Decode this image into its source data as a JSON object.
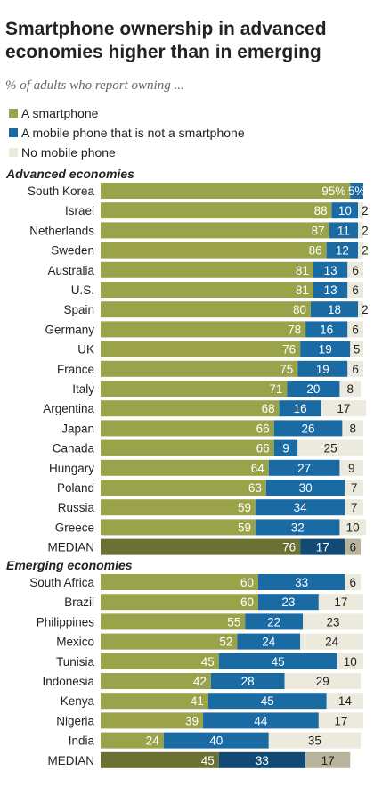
{
  "title": "Smartphone ownership in advanced economies higher than in emerging",
  "subtitle": "% of adults who report owning ...",
  "colors": {
    "smartphone": "#9aa24a",
    "mobile": "#1a6aa3",
    "none": "#ebeadd",
    "median_smartphone": "#6b7034",
    "median_mobile": "#124a73",
    "median_none": "#b8b39b"
  },
  "chart_data": {
    "type": "bar",
    "stacked": true,
    "orientation": "horizontal",
    "legend": {
      "placement": "top-left",
      "entries": [
        "A smartphone",
        "A mobile phone that is not a smartphone",
        "No mobile phone"
      ]
    },
    "groups": [
      {
        "label": "Advanced economies",
        "rows": [
          {
            "country": "South Korea",
            "values": [
              95,
              5,
              0
            ],
            "labels": [
              "95%",
              "5%",
              ""
            ]
          },
          {
            "country": "Israel",
            "values": [
              88,
              10,
              2
            ],
            "labels": [
              "88",
              "10",
              "2"
            ]
          },
          {
            "country": "Netherlands",
            "values": [
              87,
              11,
              2
            ],
            "labels": [
              "87",
              "11",
              "2"
            ]
          },
          {
            "country": "Sweden",
            "values": [
              86,
              12,
              2
            ],
            "labels": [
              "86",
              "12",
              "2"
            ]
          },
          {
            "country": "Australia",
            "values": [
              81,
              13,
              6
            ],
            "labels": [
              "81",
              "13",
              "6"
            ]
          },
          {
            "country": "U.S.",
            "values": [
              81,
              13,
              6
            ],
            "labels": [
              "81",
              "13",
              "6"
            ]
          },
          {
            "country": "Spain",
            "values": [
              80,
              18,
              2
            ],
            "labels": [
              "80",
              "18",
              "2"
            ]
          },
          {
            "country": "Germany",
            "values": [
              78,
              16,
              6
            ],
            "labels": [
              "78",
              "16",
              "6"
            ]
          },
          {
            "country": "UK",
            "values": [
              76,
              19,
              5
            ],
            "labels": [
              "76",
              "19",
              "5"
            ]
          },
          {
            "country": "France",
            "values": [
              75,
              19,
              6
            ],
            "labels": [
              "75",
              "19",
              "6"
            ]
          },
          {
            "country": "Italy",
            "values": [
              71,
              20,
              8
            ],
            "labels": [
              "71",
              "20",
              "8"
            ]
          },
          {
            "country": "Argentina",
            "values": [
              68,
              16,
              17
            ],
            "labels": [
              "68",
              "16",
              "17"
            ]
          },
          {
            "country": "Japan",
            "values": [
              66,
              26,
              8
            ],
            "labels": [
              "66",
              "26",
              "8"
            ]
          },
          {
            "country": "Canada",
            "values": [
              66,
              9,
              25
            ],
            "labels": [
              "66",
              "9",
              "25"
            ]
          },
          {
            "country": "Hungary",
            "values": [
              64,
              27,
              9
            ],
            "labels": [
              "64",
              "27",
              "9"
            ]
          },
          {
            "country": "Poland",
            "values": [
              63,
              30,
              7
            ],
            "labels": [
              "63",
              "30",
              "7"
            ]
          },
          {
            "country": "Russia",
            "values": [
              59,
              34,
              7
            ],
            "labels": [
              "59",
              "34",
              "7"
            ]
          },
          {
            "country": "Greece",
            "values": [
              59,
              32,
              10
            ],
            "labels": [
              "59",
              "32",
              "10"
            ]
          },
          {
            "country": "MEDIAN",
            "values": [
              76,
              17,
              6
            ],
            "labels": [
              "76",
              "17",
              "6"
            ],
            "median": true
          }
        ]
      },
      {
        "label": "Emerging economies",
        "rows": [
          {
            "country": "South Africa",
            "values": [
              60,
              33,
              6
            ],
            "labels": [
              "60",
              "33",
              "6"
            ]
          },
          {
            "country": "Brazil",
            "values": [
              60,
              23,
              17
            ],
            "labels": [
              "60",
              "23",
              "17"
            ]
          },
          {
            "country": "Philippines",
            "values": [
              55,
              22,
              23
            ],
            "labels": [
              "55",
              "22",
              "23"
            ]
          },
          {
            "country": "Mexico",
            "values": [
              52,
              24,
              24
            ],
            "labels": [
              "52",
              "24",
              "24"
            ]
          },
          {
            "country": "Tunisia",
            "values": [
              45,
              45,
              10
            ],
            "labels": [
              "45",
              "45",
              "10"
            ]
          },
          {
            "country": "Indonesia",
            "values": [
              42,
              28,
              29
            ],
            "labels": [
              "42",
              "28",
              "29"
            ]
          },
          {
            "country": "Kenya",
            "values": [
              41,
              45,
              14
            ],
            "labels": [
              "41",
              "45",
              "14"
            ]
          },
          {
            "country": "Nigeria",
            "values": [
              39,
              44,
              17
            ],
            "labels": [
              "39",
              "44",
              "17"
            ]
          },
          {
            "country": "India",
            "values": [
              24,
              40,
              35
            ],
            "labels": [
              "24",
              "40",
              "35"
            ]
          },
          {
            "country": "MEDIAN",
            "values": [
              45,
              33,
              17
            ],
            "labels": [
              "45",
              "33",
              "17"
            ],
            "median": true
          }
        ]
      }
    ]
  }
}
